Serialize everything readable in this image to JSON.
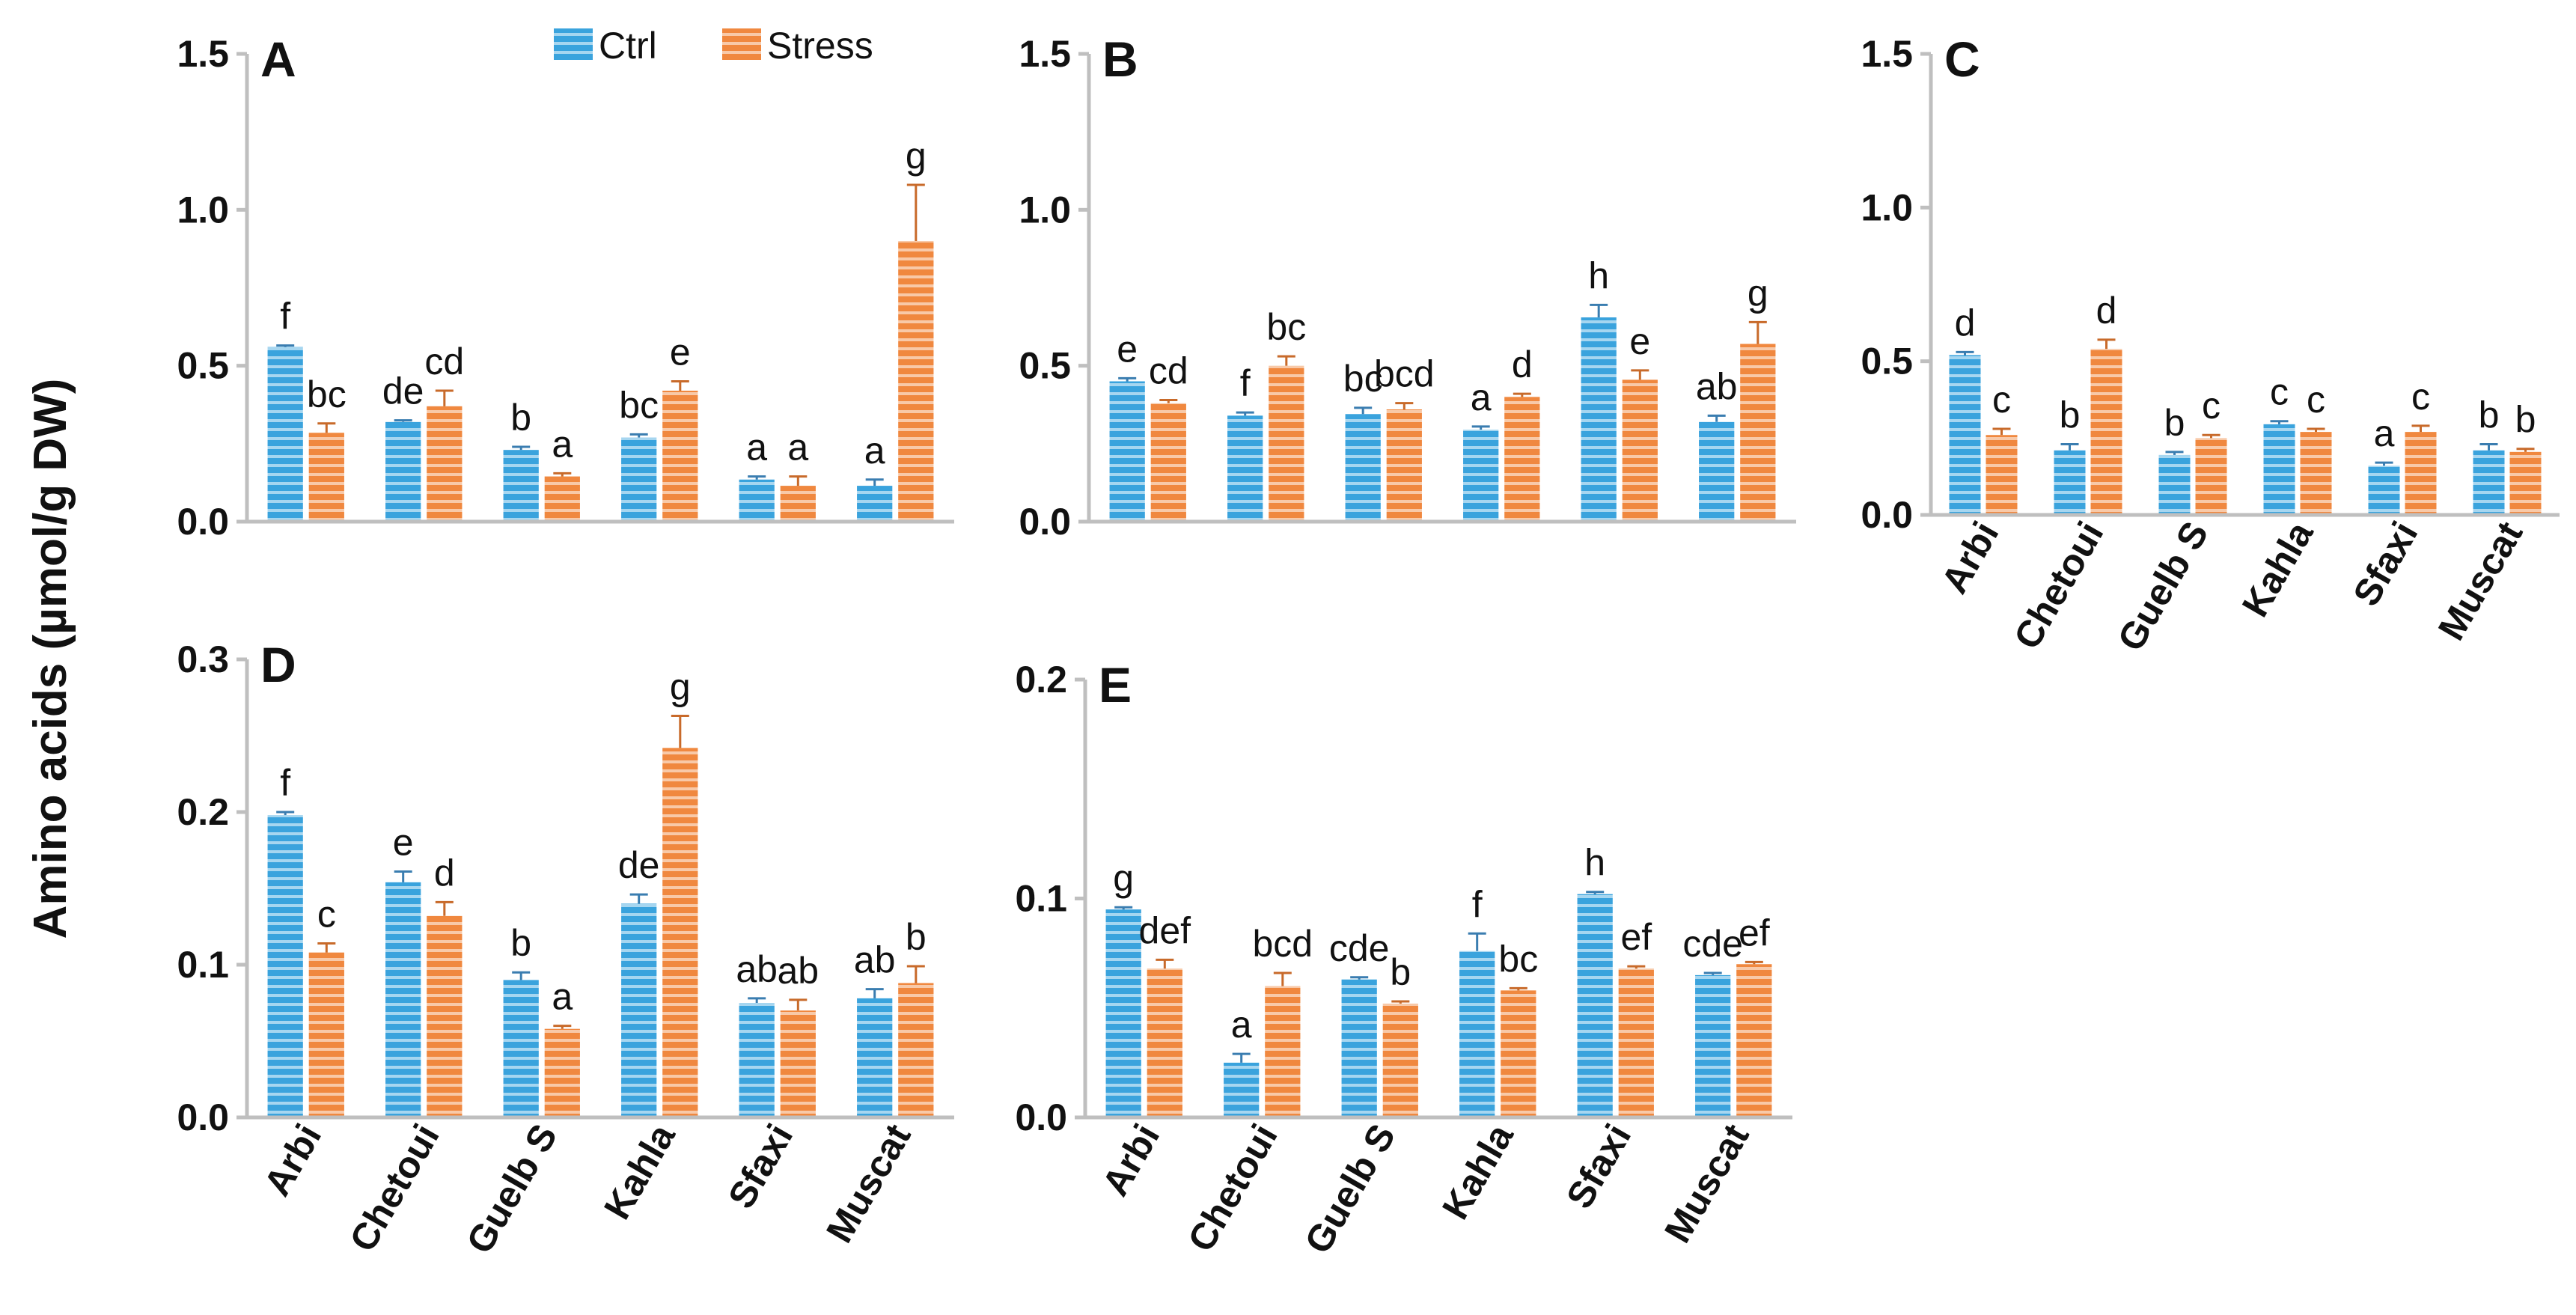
{
  "figure": {
    "ylabel": "Amino acids (µmol/g DW)",
    "legend": {
      "position": "top",
      "entries": [
        "Ctrl",
        "Stress"
      ]
    },
    "colors": {
      "ctrl": "#3aa3dd",
      "stress": "#f0883f",
      "axis": "#bfbfbf",
      "text": "#111111"
    }
  },
  "chart_data": [
    {
      "type": "bar",
      "panel": "A",
      "ylim": [
        0,
        1.5
      ],
      "yticks": [
        "0.0",
        "0.5",
        "1.0",
        "1.5"
      ],
      "categories": [
        "Arbi",
        "Chetoui",
        "Guelb S",
        "Kahla",
        "Sfaxi",
        "Muscat"
      ],
      "show_xlabels": false,
      "series": [
        {
          "name": "Ctrl",
          "values": [
            0.56,
            0.32,
            0.23,
            0.27,
            0.135,
            0.115
          ],
          "errors": [
            0.005,
            0.005,
            0.01,
            0.01,
            0.01,
            0.02
          ],
          "letters": [
            "f",
            "de",
            "b",
            "bc",
            "a",
            "a"
          ]
        },
        {
          "name": "Stress",
          "values": [
            0.285,
            0.37,
            0.145,
            0.42,
            0.115,
            0.9
          ],
          "errors": [
            0.03,
            0.05,
            0.01,
            0.03,
            0.03,
            0.18
          ],
          "letters": [
            "bc",
            "cd",
            "a",
            "e",
            "a",
            "g"
          ]
        }
      ]
    },
    {
      "type": "bar",
      "panel": "B",
      "ylim": [
        0,
        1.5
      ],
      "yticks": [
        "0.0",
        "0.5",
        "1.0",
        "1.5"
      ],
      "categories": [
        "Arbi",
        "Chetoui",
        "Guelb S",
        "Kahla",
        "Sfaxi",
        "Muscat"
      ],
      "show_xlabels": false,
      "series": [
        {
          "name": "Ctrl",
          "values": [
            0.45,
            0.34,
            0.345,
            0.295,
            0.655,
            0.32
          ],
          "errors": [
            0.01,
            0.01,
            0.02,
            0.01,
            0.04,
            0.02
          ],
          "letters": [
            "e",
            "f",
            "bc",
            "a",
            "h",
            "ab"
          ]
        },
        {
          "name": "Stress",
          "values": [
            0.38,
            0.5,
            0.36,
            0.4,
            0.455,
            0.57
          ],
          "errors": [
            0.01,
            0.03,
            0.02,
            0.01,
            0.03,
            0.07
          ],
          "letters": [
            "cd",
            "bc",
            "bcd",
            "d",
            "e",
            "g"
          ]
        }
      ]
    },
    {
      "type": "bar",
      "panel": "C",
      "ylim": [
        0,
        1.5
      ],
      "yticks": [
        "0.0",
        "0.5",
        "1.0",
        "1.5"
      ],
      "categories": [
        "Arbi",
        "Chetoui",
        "Guelb S",
        "Kahla",
        "Sfaxi",
        "Muscat"
      ],
      "show_xlabels": true,
      "series": [
        {
          "name": "Ctrl",
          "values": [
            0.52,
            0.21,
            0.195,
            0.295,
            0.16,
            0.21
          ],
          "errors": [
            0.01,
            0.02,
            0.01,
            0.01,
            0.01,
            0.02
          ],
          "letters": [
            "d",
            "b",
            "b",
            "c",
            "a",
            "b"
          ]
        },
        {
          "name": "Stress",
          "values": [
            0.26,
            0.54,
            0.25,
            0.27,
            0.27,
            0.205
          ],
          "errors": [
            0.02,
            0.03,
            0.01,
            0.01,
            0.02,
            0.01
          ],
          "letters": [
            "c",
            "d",
            "c",
            "c",
            "c",
            "b"
          ]
        }
      ]
    },
    {
      "type": "bar",
      "panel": "D",
      "ylim": [
        0,
        0.3
      ],
      "yticks": [
        "0.0",
        "0.1",
        "0.2",
        "0.3"
      ],
      "categories": [
        "Arbi",
        "Chetoui",
        "Guelb S",
        "Kahla",
        "Sfaxi",
        "Muscat"
      ],
      "show_xlabels": true,
      "series": [
        {
          "name": "Ctrl",
          "values": [
            0.198,
            0.154,
            0.09,
            0.14,
            0.075,
            0.078
          ],
          "errors": [
            0.002,
            0.007,
            0.005,
            0.006,
            0.003,
            0.006
          ],
          "letters": [
            "f",
            "e",
            "b",
            "de",
            "ab",
            "ab"
          ]
        },
        {
          "name": "Stress",
          "values": [
            0.108,
            0.132,
            0.058,
            0.242,
            0.07,
            0.088
          ],
          "errors": [
            0.006,
            0.009,
            0.002,
            0.021,
            0.007,
            0.011
          ],
          "letters": [
            "c",
            "d",
            "a",
            "g",
            "ab",
            "b"
          ]
        }
      ]
    },
    {
      "type": "bar",
      "panel": "E",
      "ylim": [
        0,
        0.2
      ],
      "yticks": [
        "0.0",
        "0.1",
        "0.2"
      ],
      "categories": [
        "Arbi",
        "Chetoui",
        "Guelb S",
        "Kahla",
        "Sfaxi",
        "Muscat"
      ],
      "show_xlabels": true,
      "series": [
        {
          "name": "Ctrl",
          "values": [
            0.095,
            0.025,
            0.063,
            0.076,
            0.102,
            0.065
          ],
          "errors": [
            0.001,
            0.004,
            0.001,
            0.008,
            0.001,
            0.001
          ],
          "letters": [
            "g",
            "a",
            "cde",
            "f",
            "h",
            "cde"
          ]
        },
        {
          "name": "Stress",
          "values": [
            0.068,
            0.06,
            0.052,
            0.058,
            0.068,
            0.07
          ],
          "errors": [
            0.004,
            0.006,
            0.001,
            0.001,
            0.001,
            0.001
          ],
          "letters": [
            "def",
            "bcd",
            "b",
            "bc",
            "ef",
            "ef"
          ]
        }
      ]
    }
  ]
}
